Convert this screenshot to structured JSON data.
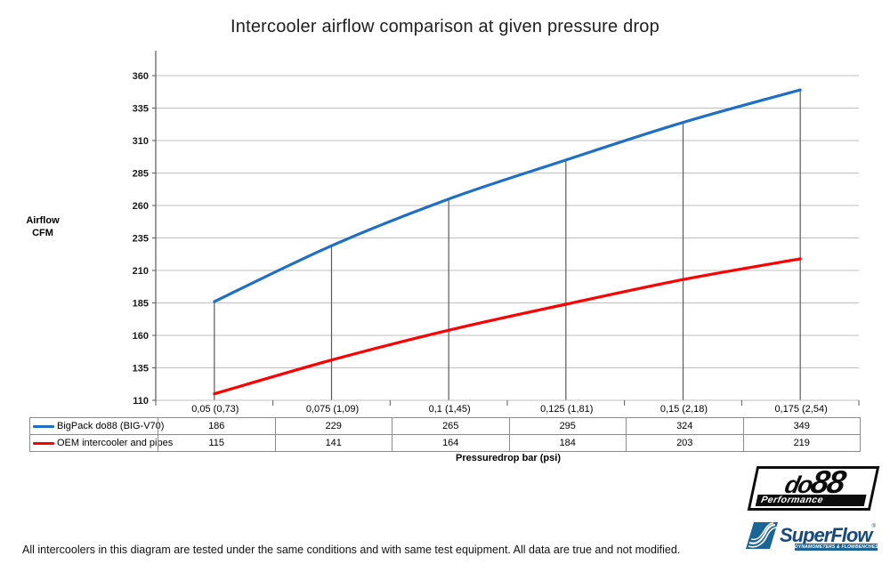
{
  "title": "Intercooler airflow comparison at given pressure drop",
  "footer_note": "All intercoolers in this diagram are tested under the same conditions and with same test equipment. All data are true and not modified.",
  "chart_data": {
    "type": "line",
    "title": "Intercooler airflow comparison at given pressure drop",
    "xlabel": "Pressuredrop bar (psi)",
    "ylabel_lines": [
      "Airflow",
      "CFM"
    ],
    "categories": [
      "0,05 (0,73)",
      "0,075 (1,09)",
      "0,1 (1,45)",
      "0,125 (1,81)",
      "0,15 (2,18)",
      "0,175 (2,54)"
    ],
    "series": [
      {
        "name": "BigPack do88 (BIG-V70)",
        "color": "#1F6FC4",
        "values": [
          186,
          229,
          265,
          295,
          324,
          349
        ]
      },
      {
        "name": "OEM intercooler and pipes",
        "color": "#FE0000",
        "values": [
          115,
          141,
          164,
          184,
          203,
          219
        ]
      }
    ],
    "ylim": [
      110,
      360
    ],
    "ytick_step": 25,
    "grid": "horizontal",
    "droplines_to_series": 0,
    "legend_position": "table-left",
    "smooth_lines": true
  },
  "colors": {
    "gridline": "#bfbfbf",
    "axis": "#595959",
    "dropline": "#595959",
    "table_border": "#8c8c8c",
    "tick_label": "#1a1a1a",
    "superflow_blue": "#1a6496",
    "superflow_navy": "#17497c"
  },
  "logos": {
    "do88": {
      "prefix": "do",
      "suffix": "88",
      "tagline": "Performance"
    },
    "superflow": {
      "wordmark": "SuperFlow",
      "registered": "®",
      "tagline": "DYNAMOMETERS & FLOWBENCHES"
    }
  }
}
